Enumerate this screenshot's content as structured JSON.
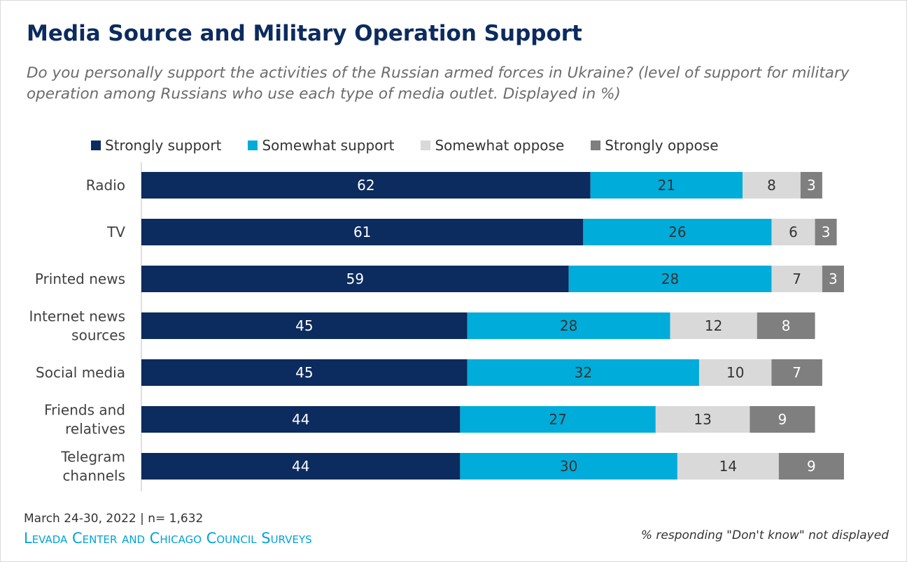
{
  "header": {
    "title": "Media Source and Military Operation Support",
    "subtitle": "Do you personally support the activities of the Russian armed forces in Ukraine? (level of support for military operation among Russians who use each type of media outlet. Displayed in %)"
  },
  "legend": {
    "items": [
      {
        "label": "Strongly support",
        "color": "#0c2b5e"
      },
      {
        "label": "Somewhat support",
        "color": "#00acd9"
      },
      {
        "label": "Somewhat oppose",
        "color": "#d9d9d9"
      },
      {
        "label": "Strongly oppose",
        "color": "#7f7f7f"
      }
    ]
  },
  "chart_data": {
    "type": "bar",
    "orientation": "horizontal",
    "stacked": true,
    "categories": [
      [
        "Radio"
      ],
      [
        "TV"
      ],
      [
        "Printed news"
      ],
      [
        "Internet news",
        "sources"
      ],
      [
        "Social media"
      ],
      [
        "Friends and",
        "relatives"
      ],
      [
        "Telegram",
        "channels"
      ]
    ],
    "series": [
      {
        "name": "Strongly support",
        "color": "#0c2b5e",
        "label_color": "#ffffff",
        "values": [
          62,
          61,
          59,
          45,
          45,
          44,
          44
        ]
      },
      {
        "name": "Somewhat support",
        "color": "#00acd9",
        "label_color": "#333333",
        "values": [
          21,
          26,
          28,
          28,
          32,
          27,
          30
        ]
      },
      {
        "name": "Somewhat oppose",
        "color": "#d9d9d9",
        "label_color": "#333333",
        "values": [
          8,
          6,
          7,
          12,
          10,
          13,
          14
        ]
      },
      {
        "name": "Strongly oppose",
        "color": "#7f7f7f",
        "label_color": "#ffffff",
        "values": [
          3,
          3,
          3,
          8,
          7,
          9,
          9
        ]
      }
    ],
    "xlim": [
      0,
      100
    ],
    "grid": false,
    "legend_position": "top",
    "data_labels": true
  },
  "footer": {
    "date_n": "March 24-30, 2022 | n= 1,632",
    "source": "Levada Center and Chicago Council Surveys",
    "note": "% responding \"Don't know\" not displayed"
  }
}
